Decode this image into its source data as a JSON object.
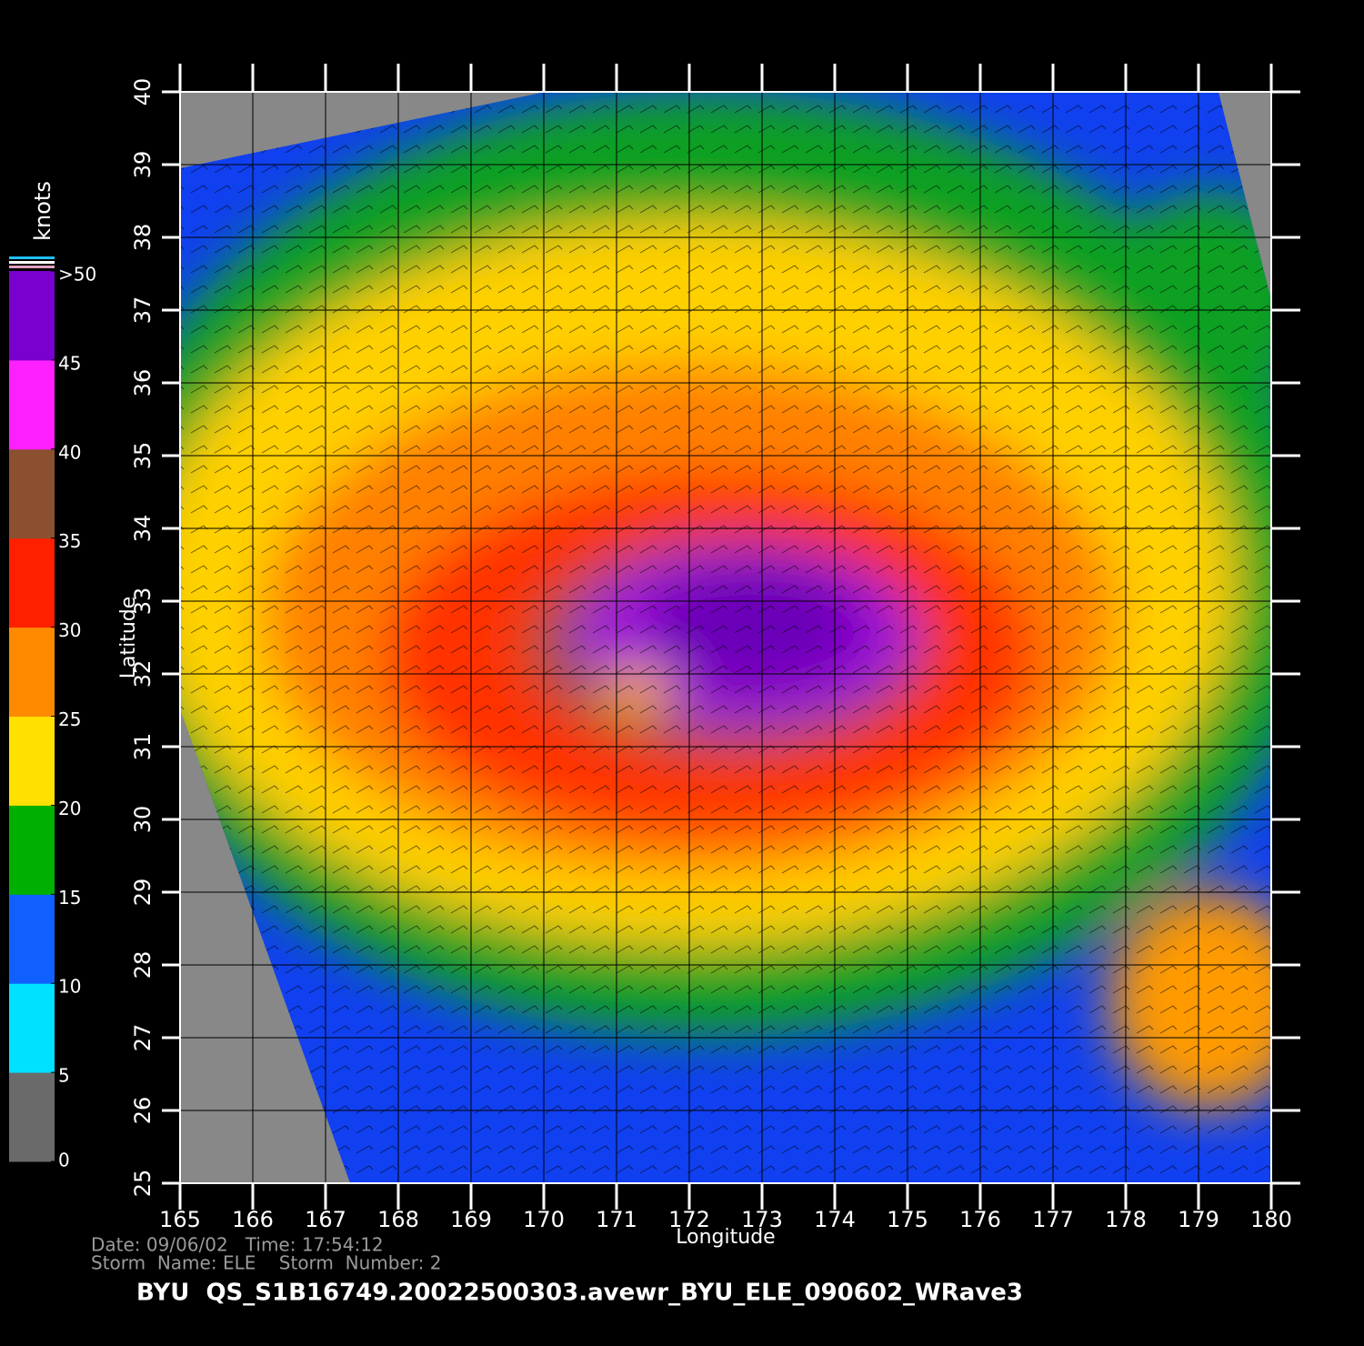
{
  "plot": {
    "xlabel": "Longitude",
    "ylabel": "Latitude",
    "xlim": [
      165,
      180
    ],
    "ylim": [
      25,
      40
    ],
    "xticks": [
      165,
      166,
      167,
      168,
      169,
      170,
      171,
      172,
      173,
      174,
      175,
      176,
      177,
      178,
      179,
      180
    ],
    "yticks": [
      25,
      26,
      27,
      28,
      29,
      30,
      31,
      32,
      33,
      34,
      35,
      36,
      37,
      38,
      39,
      40
    ],
    "grid": true
  },
  "colorbar": {
    "title": "knots",
    "lim": [
      0,
      50
    ],
    "ticks": [
      0,
      5,
      10,
      15,
      20,
      25,
      30,
      35,
      40,
      45,
      {
        "value": 50,
        "label": ">50"
      }
    ],
    "colors": [
      "#6a6a6a",
      "#00e0ff",
      "#1060ff",
      "#00b000",
      "#ffe000",
      "#ff8a00",
      "#ff2000",
      "#8a5030",
      "#ff20ff",
      "#7a00d0"
    ]
  },
  "footer": {
    "date_line": "Date: 09/06/02   Time: 17:54:12",
    "storm_line": "Storm  Name: ELE    Storm  Number: 2",
    "filename": "BYU  QS_S1B16749.20022500303.avewr_BYU_ELE_090602_WRave3"
  }
}
